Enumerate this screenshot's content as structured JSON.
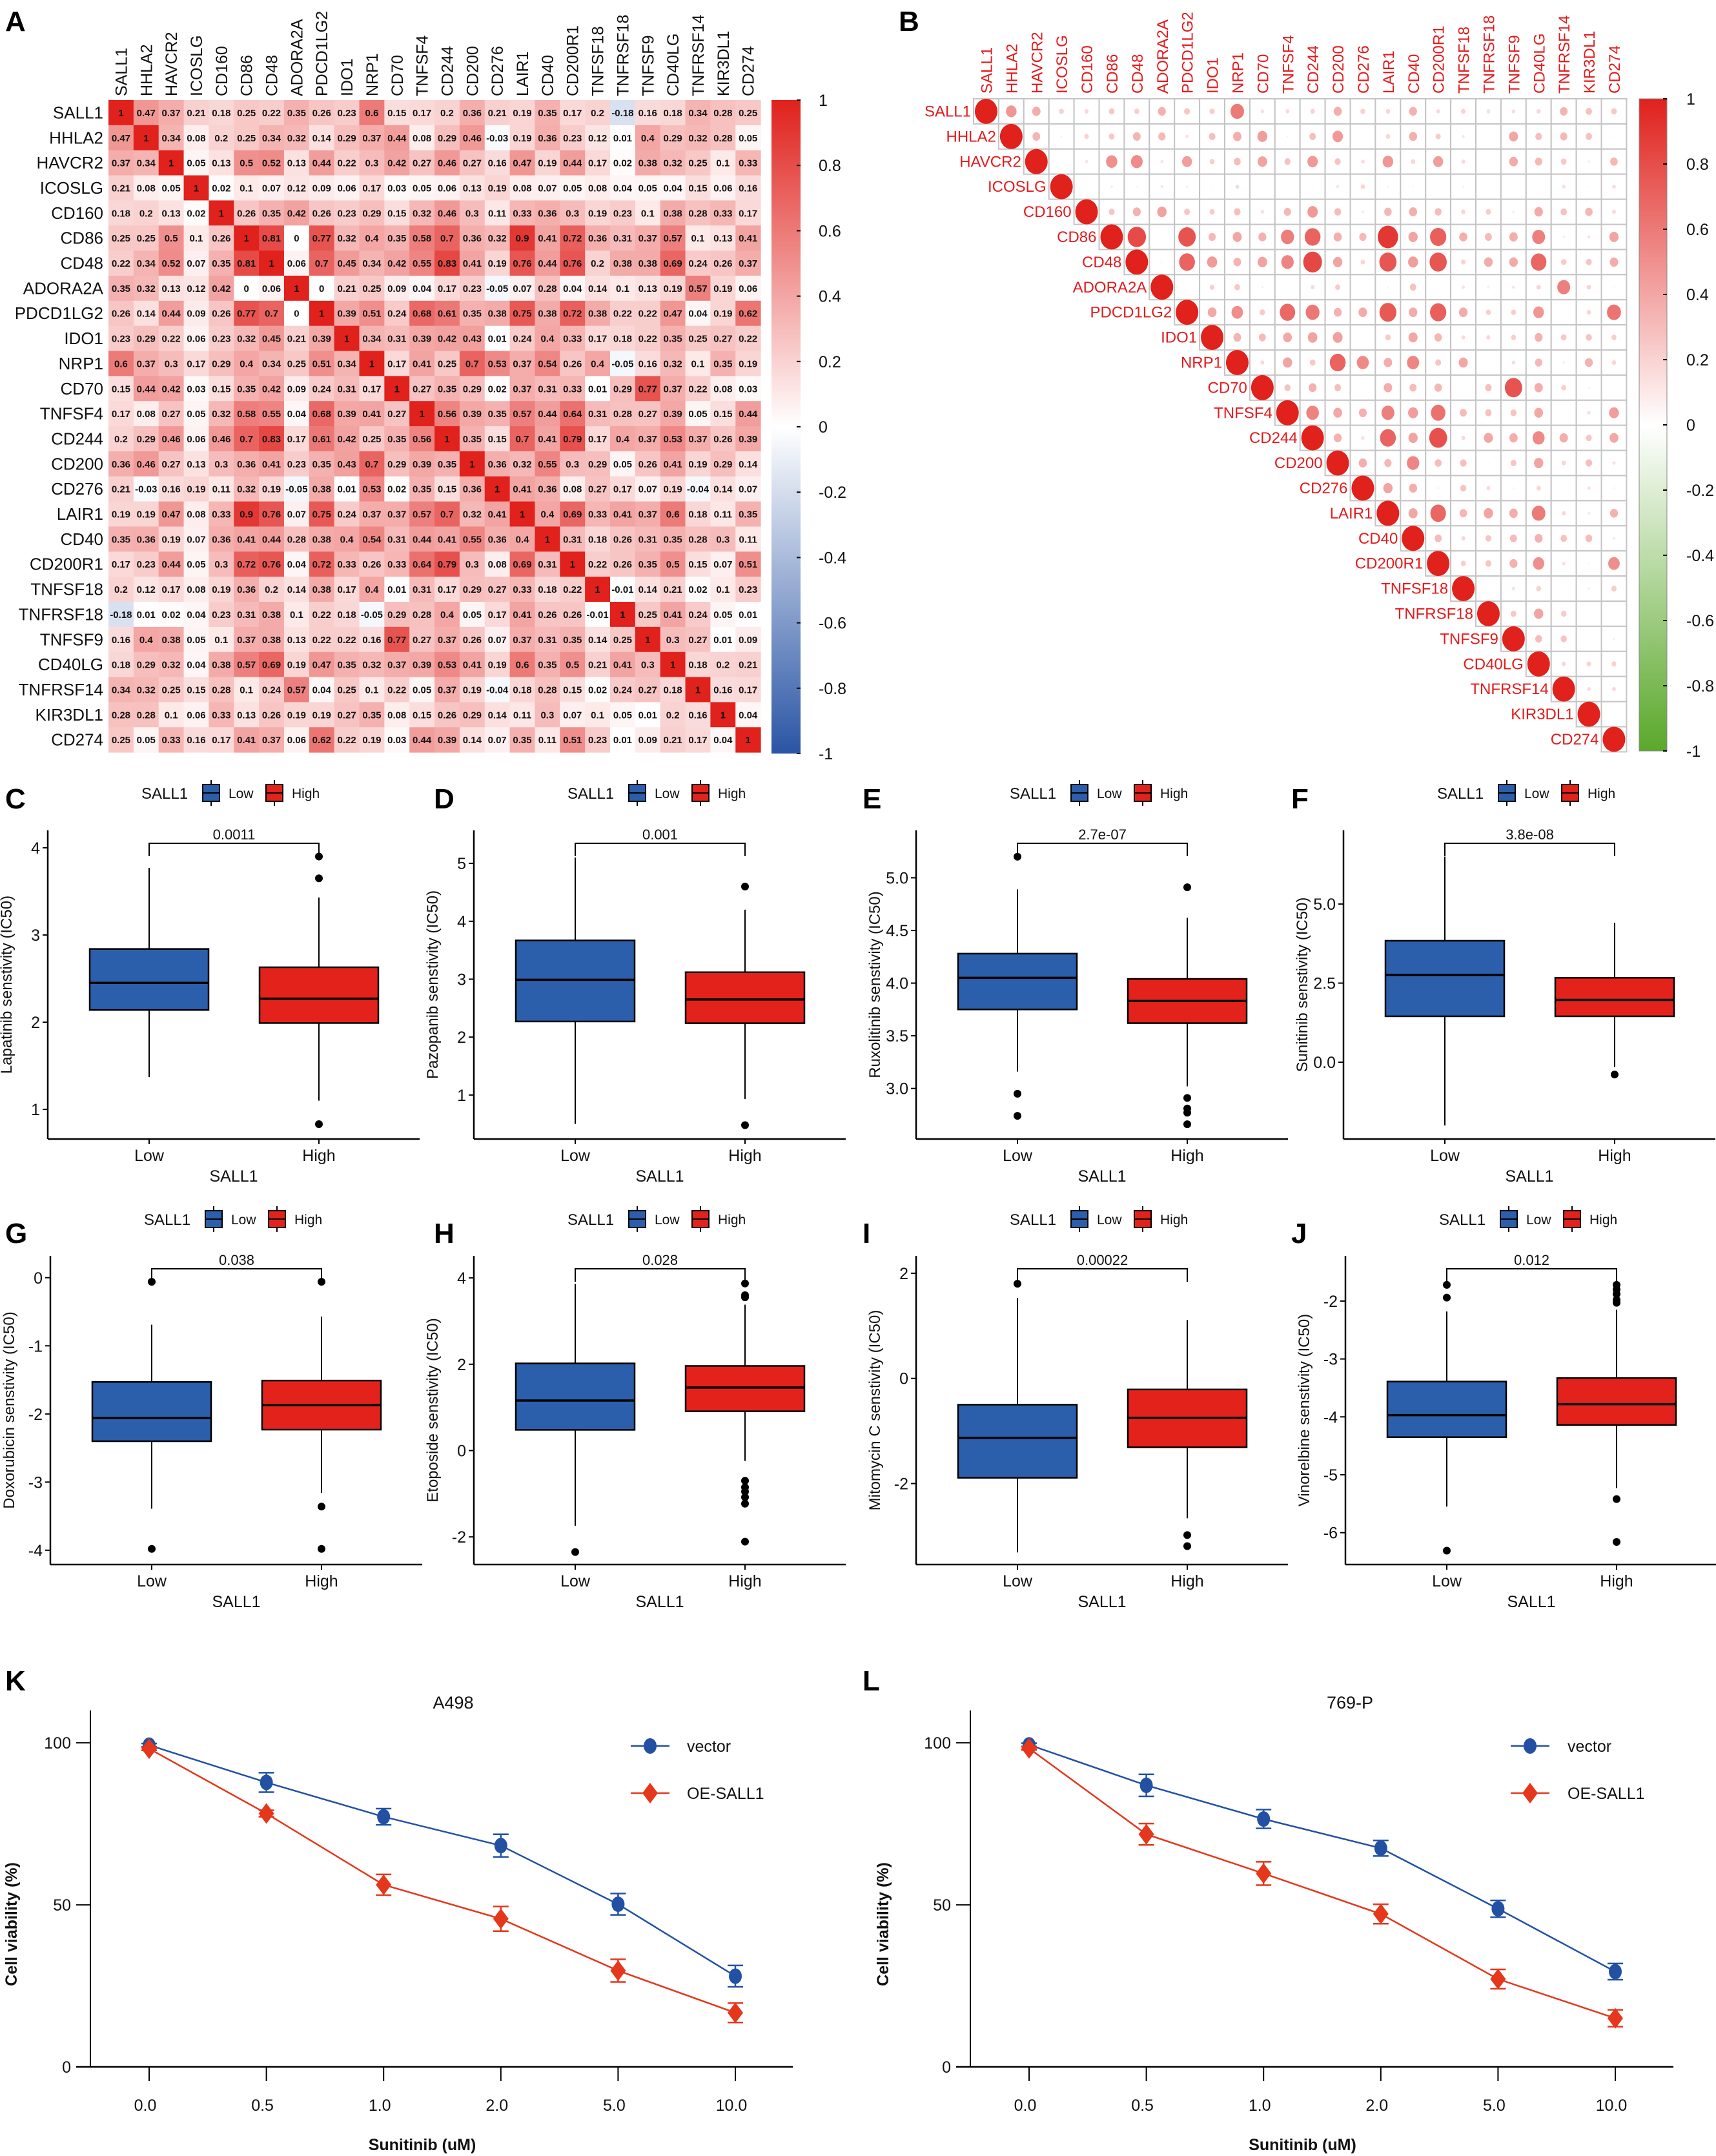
{
  "panel_letters": [
    "A",
    "B",
    "C",
    "D",
    "E",
    "F",
    "G",
    "H",
    "I",
    "J",
    "K",
    "L"
  ],
  "chart_data": [
    {
      "type": "heatmap",
      "panel": "A",
      "title": "",
      "genes": [
        "SALL1",
        "HHLA2",
        "HAVCR2",
        "ICOSLG",
        "CD160",
        "CD86",
        "CD48",
        "ADORA2A",
        "PDCD1LG2",
        "IDO1",
        "NRP1",
        "CD70",
        "TNFSF4",
        "CD244",
        "CD200",
        "CD276",
        "LAIR1",
        "CD40",
        "CD200R1",
        "TNFSF18",
        "TNFRSF18",
        "TNFSF9",
        "CD40LG",
        "TNFRSF14",
        "KIR3DL1",
        "CD274"
      ],
      "matrix_storage": "upper triangle, row i lists columns i..25 (symmetric)",
      "upper": [
        [
          1,
          0.47,
          0.37,
          0.21,
          0.18,
          0.25,
          0.22,
          0.35,
          0.26,
          0.23,
          0.6,
          0.15,
          0.17,
          0.2,
          0.36,
          0.21,
          0.19,
          0.35,
          0.17,
          0.2,
          -0.18,
          0.16,
          0.18,
          0.34,
          0.28,
          0.25
        ],
        [
          1,
          0.34,
          0.08,
          0.2,
          0.25,
          0.34,
          0.32,
          0.14,
          0.29,
          0.37,
          0.44,
          0.08,
          0.29,
          0.46,
          -0.03,
          0.19,
          0.36,
          0.23,
          0.12,
          0.01,
          0.4,
          0.29,
          0.32,
          0.28,
          0.05
        ],
        [
          1,
          0.05,
          0.13,
          0.5,
          0.52,
          0.13,
          0.44,
          0.22,
          0.3,
          0.42,
          0.27,
          0.46,
          0.27,
          0.16,
          0.47,
          0.19,
          0.44,
          0.17,
          0.02,
          0.38,
          0.32,
          0.25,
          0.1,
          0.33
        ],
        [
          1,
          0.02,
          0.1,
          0.07,
          0.12,
          0.09,
          0.06,
          0.17,
          0.03,
          0.05,
          0.06,
          0.13,
          0.19,
          0.08,
          0.07,
          0.05,
          0.08,
          0.04,
          0.05,
          0.04,
          0.15,
          0.06,
          0.16
        ],
        [
          1,
          0.26,
          0.35,
          0.42,
          0.26,
          0.23,
          0.29,
          0.15,
          0.32,
          0.46,
          0.3,
          0.11,
          0.33,
          0.36,
          0.3,
          0.19,
          0.23,
          0.1,
          0.38,
          0.28,
          0.33,
          0.17
        ],
        [
          1,
          0.81,
          0,
          0.77,
          0.32,
          0.4,
          0.35,
          0.58,
          0.7,
          0.36,
          0.32,
          0.9,
          0.41,
          0.72,
          0.36,
          0.31,
          0.37,
          0.57,
          0.1,
          0.13,
          0.41
        ],
        [
          1,
          0.06,
          0.7,
          0.45,
          0.34,
          0.42,
          0.55,
          0.83,
          0.41,
          0.19,
          0.76,
          0.44,
          0.76,
          0.2,
          0.38,
          0.38,
          0.69,
          0.24,
          0.26,
          0.37
        ],
        [
          1,
          0,
          0.21,
          0.25,
          0.09,
          0.04,
          0.17,
          0.23,
          -0.05,
          0.07,
          0.28,
          0.04,
          0.14,
          0.1,
          0.13,
          0.19,
          0.57,
          0.19,
          0.06
        ],
        [
          1,
          0.39,
          0.51,
          0.24,
          0.68,
          0.61,
          0.35,
          0.38,
          0.75,
          0.38,
          0.72,
          0.38,
          0.22,
          0.22,
          0.47,
          0.04,
          0.19,
          0.62
        ],
        [
          1,
          0.34,
          0.31,
          0.39,
          0.42,
          0.43,
          0.01,
          0.24,
          0.4,
          0.33,
          0.17,
          0.18,
          0.22,
          0.35,
          0.25,
          0.27,
          0.22
        ],
        [
          1,
          0.17,
          0.41,
          0.25,
          0.7,
          0.53,
          0.37,
          0.54,
          0.26,
          0.4,
          -0.05,
          0.16,
          0.32,
          0.1,
          0.35,
          0.19
        ],
        [
          1,
          0.27,
          0.35,
          0.29,
          0.02,
          0.37,
          0.31,
          0.33,
          0.01,
          0.29,
          0.77,
          0.37,
          0.22,
          0.08,
          0.03
        ],
        [
          1,
          0.56,
          0.39,
          0.35,
          0.57,
          0.44,
          0.64,
          0.31,
          0.28,
          0.27,
          0.39,
          0.05,
          0.15,
          0.44
        ],
        [
          1,
          0.35,
          0.15,
          0.7,
          0.41,
          0.79,
          0.17,
          0.4,
          0.37,
          0.53,
          0.37,
          0.26,
          0.39
        ],
        [
          1,
          0.36,
          0.32,
          0.55,
          0.3,
          0.29,
          0.05,
          0.26,
          0.41,
          0.19,
          0.29,
          0.14
        ],
        [
          1,
          0.41,
          0.36,
          0.08,
          0.27,
          0.17,
          0.07,
          0.19,
          -0.04,
          0.14,
          0.07
        ],
        [
          1,
          0.4,
          0.69,
          0.33,
          0.41,
          0.37,
          0.6,
          0.18,
          0.11,
          0.35
        ],
        [
          1,
          0.31,
          0.18,
          0.26,
          0.31,
          0.35,
          0.28,
          0.3,
          0.11
        ],
        [
          1,
          0.22,
          0.26,
          0.35,
          0.5,
          0.15,
          0.07,
          0.51
        ],
        [
          1,
          -0.01,
          0.14,
          0.21,
          0.02,
          0.1,
          0.23
        ],
        [
          1,
          0.25,
          0.41,
          0.24,
          0.05,
          0.01
        ],
        [
          1,
          0.3,
          0.27,
          0.01,
          0.09
        ],
        [
          1,
          0.18,
          0.2,
          0.21
        ],
        [
          1,
          0.16,
          0.17
        ],
        [
          1,
          0.04
        ],
        [
          1
        ]
      ],
      "value_range": [
        -1,
        1
      ],
      "colorbar_ticks": [
        "1",
        "0.8",
        "0.6",
        "0.4",
        "0.2",
        "0",
        "-0.2",
        "-0.4",
        "-0.6",
        "-0.8",
        "-1"
      ],
      "colors": {
        "positive": "#e0211c",
        "zero": "#ffffff",
        "negative": "#2a55a5"
      }
    },
    {
      "type": "heatmap",
      "panel": "B",
      "style": "correlation dot plot, upper triangle, same genes and matrix as panel A",
      "value_range": [
        -1,
        1
      ],
      "colorbar_ticks": [
        "1",
        "0.8",
        "0.6",
        "0.4",
        "0.2",
        "0",
        "-0.2",
        "-0.4",
        "-0.6",
        "-0.8",
        "-1"
      ],
      "colors": {
        "positive": "#e0211c",
        "zero": "#ffffff",
        "negative": "#5aa82a",
        "label": "#e41a1c",
        "grid": "#c4c4c4"
      }
    },
    {
      "type": "box",
      "panel": "C",
      "legend_title": "SALL1",
      "groups": [
        "Low",
        "High"
      ],
      "xlabel": "SALL1",
      "ylabel": "Lapatinib senstivity (IC50)",
      "p_value": "0.0011",
      "ylim": [
        0.66,
        4.2
      ],
      "yticks": [
        "1",
        "2",
        "3",
        "4"
      ],
      "boxes": [
        {
          "min": 1.37,
          "q1": 2.14,
          "median": 2.45,
          "q3": 2.84,
          "max": 3.77,
          "outliers": []
        },
        {
          "min": 1.1,
          "q1": 1.99,
          "median": 2.27,
          "q3": 2.63,
          "max": 3.43,
          "outliers": [
            3.9,
            3.65,
            0.83
          ]
        }
      ]
    },
    {
      "type": "box",
      "panel": "D",
      "legend_title": "SALL1",
      "groups": [
        "Low",
        "High"
      ],
      "xlabel": "SALL1",
      "ylabel": "Pazopanib senstivity (IC50)",
      "p_value": "0.001",
      "ylim": [
        0.24,
        5.57
      ],
      "yticks": [
        "1",
        "2",
        "3",
        "4",
        "5"
      ],
      "boxes": [
        {
          "min": 0.5,
          "q1": 2.27,
          "median": 2.99,
          "q3": 3.67,
          "max": 5.1,
          "outliers": []
        },
        {
          "min": 0.93,
          "q1": 2.24,
          "median": 2.65,
          "q3": 3.12,
          "max": 4.2,
          "outliers": [
            4.6,
            0.48
          ]
        }
      ]
    },
    {
      "type": "box",
      "panel": "E",
      "legend_title": "SALL1",
      "groups": [
        "Low",
        "High"
      ],
      "xlabel": "SALL1",
      "ylabel": "Ruxolitinib senstivity (IC50)",
      "p_value": "2.7e-07",
      "ylim": [
        2.52,
        5.45
      ],
      "yticks": [
        "3.0",
        "3.5",
        "4.0",
        "4.5",
        "5.0"
      ],
      "boxes": [
        {
          "min": 3.16,
          "q1": 3.75,
          "median": 4.05,
          "q3": 4.28,
          "max": 4.89,
          "outliers": [
            5.2,
            2.95,
            2.74
          ]
        },
        {
          "min": 3.02,
          "q1": 3.62,
          "median": 3.83,
          "q3": 4.04,
          "max": 4.62,
          "outliers": [
            4.91,
            2.91,
            2.81,
            2.77,
            2.66
          ]
        }
      ]
    },
    {
      "type": "box",
      "panel": "F",
      "legend_title": "SALL1",
      "groups": [
        "Low",
        "High"
      ],
      "xlabel": "SALL1",
      "ylabel": "Sunitinib senstivity (IC50)",
      "p_value": "3.8e-08",
      "ylim": [
        -2.43,
        7.33
      ],
      "yticks": [
        "0.0",
        "2.5",
        "5.0"
      ],
      "boxes": [
        {
          "min": -2.0,
          "q1": 1.45,
          "median": 2.76,
          "q3": 3.84,
          "max": 6.5,
          "outliers": []
        },
        {
          "min": -0.15,
          "q1": 1.45,
          "median": 1.97,
          "q3": 2.67,
          "max": 4.41,
          "outliers": [
            -0.39
          ]
        }
      ]
    },
    {
      "type": "box",
      "panel": "G",
      "legend_title": "SALL1",
      "groups": [
        "Low",
        "High"
      ],
      "xlabel": "SALL1",
      "ylabel": "Doxorubicin senstivity (IC50)",
      "p_value": "0.038",
      "ylim": [
        -4.21,
        0.32
      ],
      "yticks": [
        "-4",
        "-3",
        "-2",
        "-1",
        "0"
      ],
      "boxes": [
        {
          "min": -3.39,
          "q1": -2.4,
          "median": -2.06,
          "q3": -1.53,
          "max": -0.69,
          "outliers": [
            -0.06,
            -3.98
          ]
        },
        {
          "min": -3.16,
          "q1": -2.23,
          "median": -1.87,
          "q3": -1.51,
          "max": -0.57,
          "outliers": [
            -0.06,
            -3.36,
            -3.98
          ]
        }
      ]
    },
    {
      "type": "box",
      "panel": "H",
      "legend_title": "SALL1",
      "groups": [
        "Low",
        "High"
      ],
      "xlabel": "SALL1",
      "ylabel": "Etoposide senstivity (IC50)",
      "p_value": "0.028",
      "ylim": [
        -2.64,
        4.51
      ],
      "yticks": [
        "-2",
        "0",
        "2",
        "4"
      ],
      "boxes": [
        {
          "min": -1.74,
          "q1": 0.48,
          "median": 1.16,
          "q3": 2.02,
          "max": 3.86,
          "outliers": [
            -2.35
          ]
        },
        {
          "min": -0.24,
          "q1": 0.91,
          "median": 1.46,
          "q3": 1.96,
          "max": 3.38,
          "outliers": [
            3.87,
            3.6,
            3.55,
            -0.7,
            -0.85,
            -0.95,
            -1.08,
            -1.23,
            -2.11
          ]
        }
      ]
    },
    {
      "type": "box",
      "panel": "I",
      "legend_title": "SALL1",
      "groups": [
        "Low",
        "High"
      ],
      "xlabel": "SALL1",
      "ylabel": "Mitomycin C senstivity (IC50)",
      "p_value": "0.00022",
      "ylim": [
        -3.54,
        2.33
      ],
      "yticks": [
        "-2",
        "0",
        "2"
      ],
      "boxes": [
        {
          "min": -3.31,
          "q1": -1.89,
          "median": -1.13,
          "q3": -0.5,
          "max": 1.53,
          "outliers": [
            1.8
          ]
        },
        {
          "min": -2.66,
          "q1": -1.31,
          "median": -0.75,
          "q3": -0.21,
          "max": 1.11,
          "outliers": [
            -2.98,
            -3.19
          ]
        }
      ]
    },
    {
      "type": "box",
      "panel": "J",
      "legend_title": "SALL1",
      "groups": [
        "Low",
        "High"
      ],
      "xlabel": "SALL1",
      "ylabel": "Vinorelbine senstivity (IC50)",
      "p_value": "0.012",
      "ylim": [
        -6.55,
        -1.22
      ],
      "yticks": [
        "-6",
        "-5",
        "-4",
        "-3",
        "-2"
      ],
      "boxes": [
        {
          "min": -5.55,
          "q1": -4.35,
          "median": -3.97,
          "q3": -3.39,
          "max": -2.18,
          "outliers": [
            -1.72,
            -1.94,
            -6.31
          ]
        },
        {
          "min": -5.23,
          "q1": -4.14,
          "median": -3.78,
          "q3": -3.33,
          "max": -2.15,
          "outliers": [
            -1.72,
            -1.8,
            -1.88,
            -1.98,
            -2.03,
            -5.42,
            -6.16
          ]
        }
      ]
    },
    {
      "type": "line",
      "panel": "K",
      "title": "A498",
      "xlabel": "Sunitinib (uM)",
      "ylabel": "Cell viability (%)",
      "x": [
        "0.0",
        "0.5",
        "1.0",
        "2.0",
        "5.0",
        "10.0"
      ],
      "ylim": [
        0,
        110
      ],
      "yticks": [
        "0",
        "50",
        "100"
      ],
      "legend_position": "top-right",
      "series": [
        {
          "name": "vector",
          "color": "#2251a3",
          "marker": "circle",
          "values": [
            99.3,
            87.8,
            77.2,
            68.3,
            50.2,
            28.0
          ],
          "error": [
            0.5,
            3.0,
            2.5,
            3.5,
            3.3,
            3.3
          ]
        },
        {
          "name": "OE-SALL1",
          "color": "#e5371c",
          "marker": "diamond",
          "values": [
            98.2,
            78.2,
            56.2,
            45.7,
            29.7,
            16.7
          ],
          "error": [
            0.5,
            1.0,
            3.2,
            3.8,
            3.5,
            3.0
          ]
        }
      ]
    },
    {
      "type": "line",
      "panel": "L",
      "title": "769-P",
      "xlabel": "Sunitinib (uM)",
      "ylabel": "Cell viability (%)",
      "x": [
        "0.0",
        "0.5",
        "1.0",
        "2.0",
        "5.0",
        "10.0"
      ],
      "ylim": [
        0,
        110
      ],
      "yticks": [
        "0",
        "50",
        "100"
      ],
      "legend_position": "top-right",
      "series": [
        {
          "name": "vector",
          "color": "#2251a3",
          "marker": "circle",
          "values": [
            99.4,
            86.9,
            76.5,
            67.5,
            48.8,
            29.4
          ],
          "error": [
            0.5,
            3.4,
            2.9,
            2.4,
            2.6,
            2.5
          ]
        },
        {
          "name": "OE-SALL1",
          "color": "#e5371c",
          "marker": "diamond",
          "values": [
            98.3,
            71.8,
            59.7,
            47.2,
            27.1,
            15.0
          ],
          "error": [
            0.5,
            3.3,
            3.6,
            3.0,
            3.0,
            2.6
          ]
        }
      ]
    }
  ],
  "box_colors": {
    "Low": "#2c5fab",
    "High": "#e3221c"
  }
}
